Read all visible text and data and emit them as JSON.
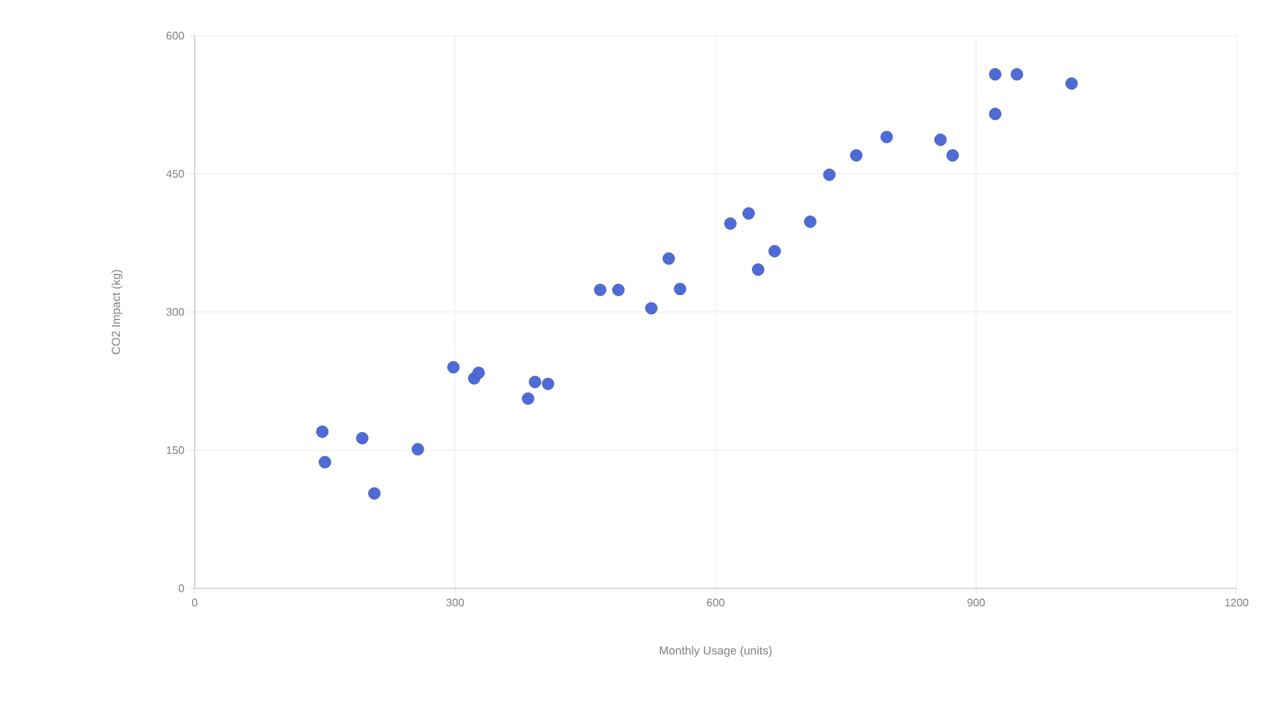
{
  "chart_data": {
    "type": "scatter",
    "xlabel": "Monthly Usage (units)",
    "ylabel": "CO2 Impact (kg)",
    "x": [
      147,
      150,
      193,
      207,
      257,
      298,
      322,
      327,
      384,
      392,
      407,
      467,
      488,
      526,
      546,
      559,
      617,
      638,
      649,
      668,
      709,
      731,
      762,
      797,
      859,
      873,
      922,
      922,
      947,
      1010
    ],
    "values": [
      170,
      137,
      163,
      103,
      151,
      240,
      228,
      234,
      206,
      224,
      222,
      324,
      324,
      304,
      358,
      325,
      396,
      407,
      346,
      366,
      398,
      449,
      470,
      490,
      487,
      470,
      515,
      558,
      558,
      548
    ],
    "color": "#4f6bd6",
    "marker": "circle",
    "xlim": [
      0,
      1200
    ],
    "xticks": [
      0,
      300,
      600,
      900,
      1200
    ],
    "ylim": [
      0,
      600
    ],
    "yticks": [
      0,
      150,
      300,
      450,
      600
    ],
    "grid": true
  }
}
